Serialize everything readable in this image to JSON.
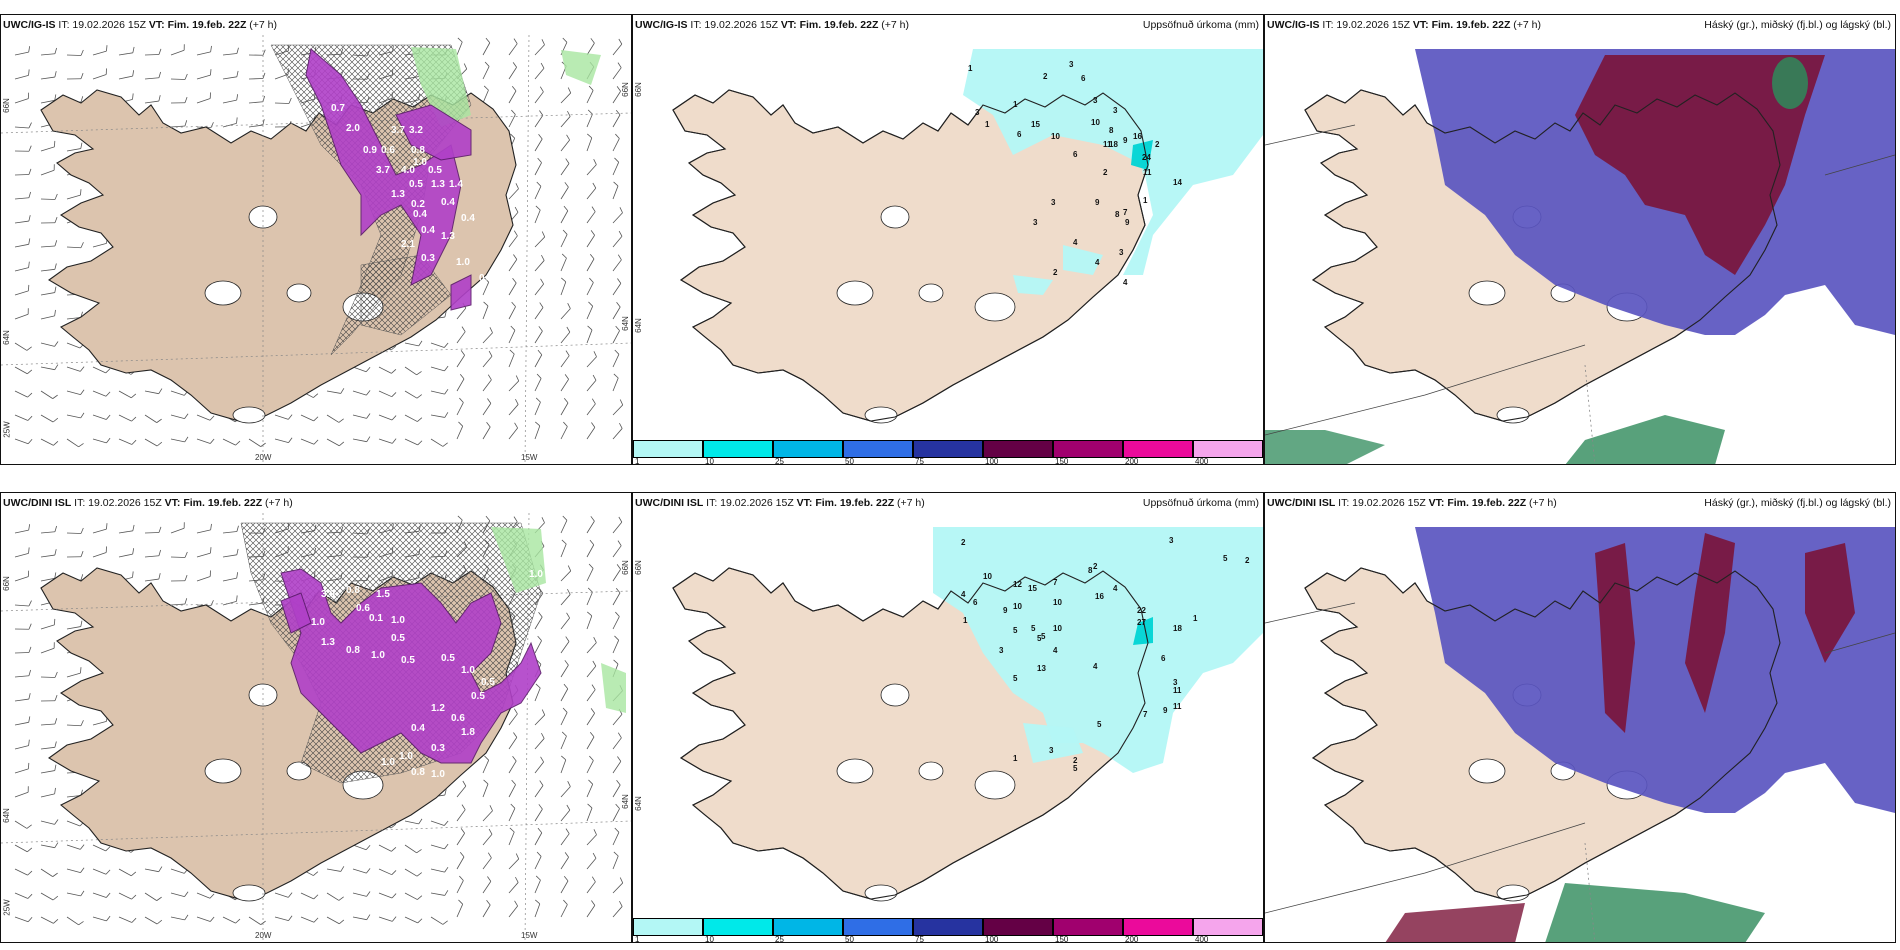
{
  "colors": {
    "land": "#efdccb",
    "land_panel1": "#dcc4ae",
    "coast": "#222222",
    "precip_light": "#b3f7f5",
    "snow_magenta": "#b040c8",
    "high_cloud": "#7a1438",
    "mid_cloud": "#5a55c0",
    "low_cloud": "#2e8a5a"
  },
  "top_row": {
    "wind_panel": {
      "model": "UWC/IG-IS",
      "it_label": "IT: 19.02.2026 15Z",
      "vt_label": "VT: Fim. 19.feb. 22Z",
      "lead": "(+7 h)",
      "lon_labels": [
        "20W",
        "15W"
      ],
      "lat_labels": [
        "66N",
        "64N",
        "25W"
      ],
      "right_lat_labels": [
        "66N",
        "64N"
      ],
      "snow_values": [
        "0.7",
        "2.0",
        "3.7",
        "3.2",
        "0.9",
        "0.6",
        "0.8",
        "1.0",
        "3.7",
        "4.0",
        "0.5",
        "0.5",
        "1.3",
        "1.4",
        "1.3",
        "0.2",
        "0.4",
        "0.4",
        "0.4",
        "0.4",
        "1.3",
        "2.1",
        "0.3",
        "1.0",
        "0.6",
        "0.5"
      ]
    },
    "precip_panel": {
      "model": "UWC/IG-IS",
      "it_label": "IT: 19.02.2026 15Z",
      "vt_label": "VT: Fim. 19.feb. 22Z",
      "lead": "(+7 h)",
      "title": "Uppsöfnuð úrkoma (mm)",
      "lat_labels": [
        "66N",
        "64N"
      ],
      "values": [
        "1",
        "2",
        "3",
        "6",
        "3",
        "1",
        "3",
        "3",
        "1",
        "6",
        "10",
        "8",
        "15",
        "10",
        "16",
        "9",
        "11",
        "18",
        "6",
        "24",
        "2",
        "11",
        "14",
        "1",
        "9",
        "7",
        "9",
        "8",
        "2",
        "3",
        "3",
        "4",
        "4",
        "3",
        "4",
        "2"
      ]
    },
    "cloud_panel": {
      "model": "UWC/IG-IS",
      "it_label": "IT: 19.02.2026 15Z",
      "vt_label": "VT: Fim. 19.feb. 22Z",
      "lead": "(+7 h)",
      "title": "Háský (gr.), miðský (fj.bl.) og lágský (bl.)"
    }
  },
  "bottom_row": {
    "wind_panel": {
      "model": "UWC/DINI ISL",
      "it_label": "IT: 19.02.2026 15Z",
      "vt_label": "VT: Fim. 19.feb. 22Z",
      "lead": "(+7 h)",
      "lon_labels": [
        "20W",
        "15W"
      ],
      "lat_labels": [
        "66N",
        "64N",
        "25W"
      ],
      "right_lat_labels": [
        "66N",
        "64N"
      ],
      "snow_values": [
        "1.0",
        "3.0",
        "1.5",
        "0.8",
        "0.6",
        "1.0",
        "0.1",
        "1.0",
        "0.5",
        "1.3",
        "0.8",
        "1.0",
        "0.5",
        "0.5",
        "1.0",
        "0.5",
        "0.5",
        "1.2",
        "0.6",
        "0.4",
        "1.8",
        "0.3",
        "1.0",
        "1.0",
        "0.8",
        "1.0"
      ]
    },
    "precip_panel": {
      "model": "UWC/DINI ISL",
      "it_label": "IT: 19.02.2026 15Z",
      "vt_label": "VT: Fim. 19.feb. 22Z",
      "lead": "(+7 h)",
      "title": "Uppsöfnuð úrkoma (mm)",
      "lat_labels": [
        "66N",
        "64N"
      ],
      "values": [
        "2",
        "2",
        "3",
        "10",
        "7",
        "8",
        "12",
        "15",
        "10",
        "2",
        "5",
        "4",
        "6",
        "9",
        "10",
        "16",
        "1",
        "3",
        "5",
        "10",
        "4",
        "5",
        "4",
        "27",
        "22",
        "18",
        "1",
        "11",
        "13",
        "5",
        "5",
        "5",
        "4",
        "11",
        "7",
        "9",
        "5",
        "2",
        "3",
        "5",
        "1",
        "6",
        "3"
      ]
    },
    "cloud_panel": {
      "model": "UWC/DINI ISL",
      "it_label": "IT: 19.02.2026 15Z",
      "vt_label": "VT: Fim. 19.feb. 22Z",
      "lead": "(+7 h)",
      "title": "Háský (gr.), miðský (fj.bl.) og lágský (bl.)"
    }
  },
  "colorbar": {
    "ticks": [
      "1",
      "10",
      "25",
      "50",
      "75",
      "100",
      "150",
      "200",
      "400"
    ],
    "colors": [
      "#b3f7f5",
      "#00e9e9",
      "#00b6e6",
      "#2f6ee6",
      "#2633a0",
      "#640045",
      "#a0006e",
      "#eb0a9b",
      "#f5a5ec"
    ]
  }
}
